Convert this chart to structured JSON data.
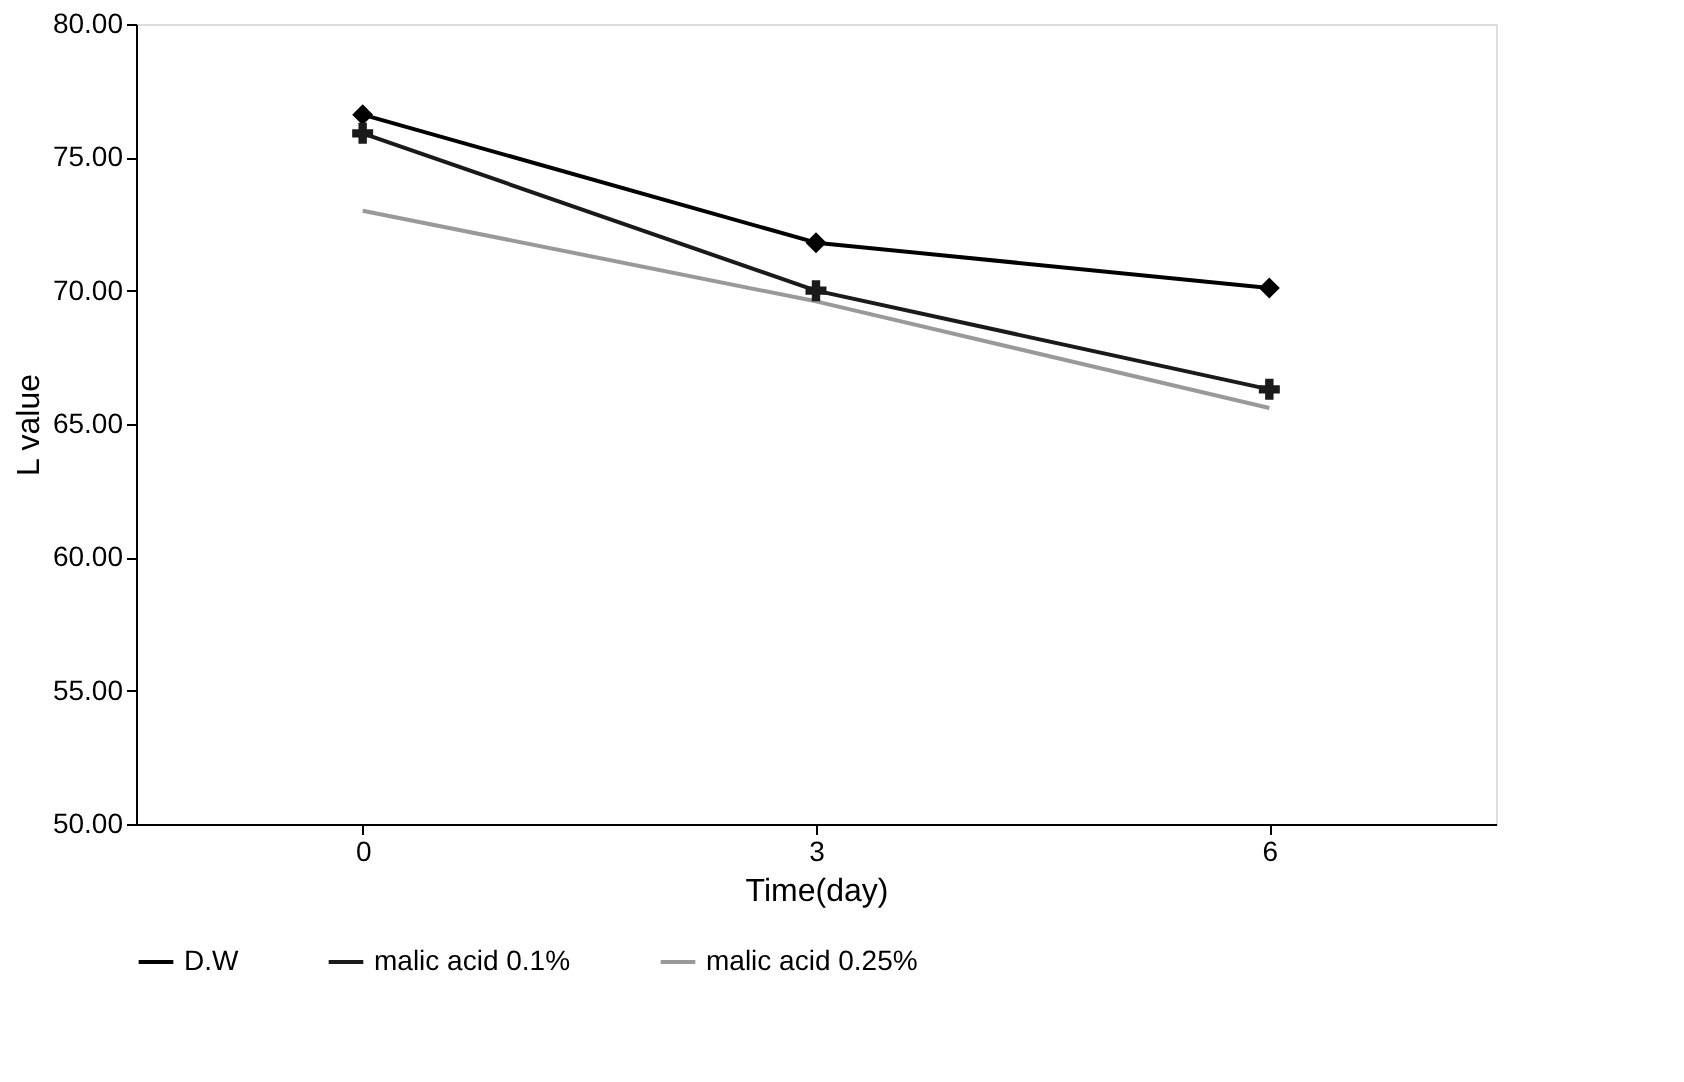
{
  "chart_data": {
    "type": "line",
    "xlabel": "Time(day)",
    "ylabel": "L value",
    "categories": [
      "0",
      "3",
      "6"
    ],
    "series": [
      {
        "name": "D.W",
        "color": "#000000",
        "marker": "diamond",
        "values": [
          76.6,
          71.8,
          70.1
        ]
      },
      {
        "name": "malic acid 0.1%",
        "color": "#1a1a1a",
        "marker": "cross",
        "values": [
          75.9,
          70.0,
          66.3
        ]
      },
      {
        "name": "malic acid 0.25%",
        "color": "#999999",
        "marker": "none",
        "values": [
          73.0,
          69.6,
          65.6
        ]
      }
    ],
    "ylim": [
      50,
      80
    ],
    "yticks": [
      {
        "value": 50,
        "label": "50.00"
      },
      {
        "value": 55,
        "label": "55.00"
      },
      {
        "value": 60,
        "label": "60.00"
      },
      {
        "value": 65,
        "label": "65.00"
      },
      {
        "value": 70,
        "label": "70.00"
      },
      {
        "value": 75,
        "label": "75.00"
      },
      {
        "value": 80,
        "label": "80.00"
      }
    ],
    "grid": false,
    "legend": "bottom",
    "line_style": "solid"
  }
}
